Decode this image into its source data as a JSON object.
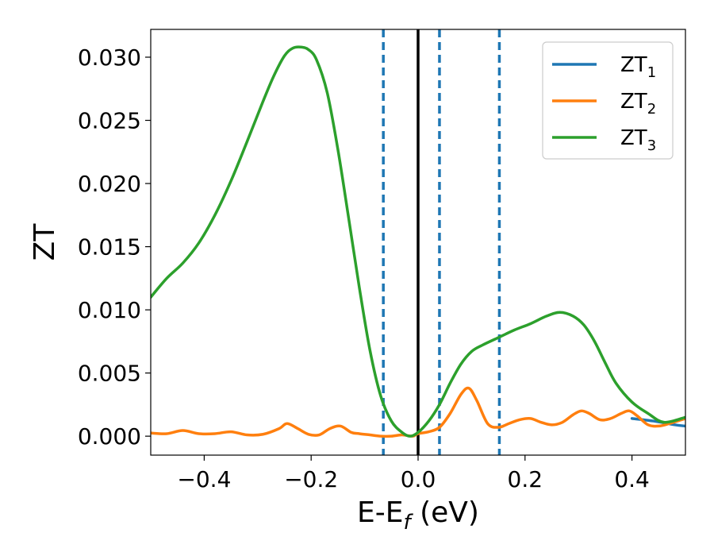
{
  "chart_data": {
    "type": "line",
    "xlabel": "E-E",
    "xlabel_sub": "f",
    "xlabel_suffix": " (eV)",
    "ylabel": "ZT",
    "xlim": [
      -0.5,
      0.5
    ],
    "ylim": [
      -0.0015,
      0.0322
    ],
    "xticks": [
      -0.4,
      -0.2,
      0.0,
      0.2,
      0.4
    ],
    "xtick_labels": [
      "−0.4",
      "−0.2",
      "0.0",
      "0.2",
      "0.4"
    ],
    "yticks": [
      0.0,
      0.005,
      0.01,
      0.015,
      0.02,
      0.025,
      0.03
    ],
    "ytick_labels": [
      "0.000",
      "0.005",
      "0.010",
      "0.015",
      "0.020",
      "0.025",
      "0.030"
    ],
    "grid": false,
    "legend_position": "top-right",
    "series": [
      {
        "name": "ZT",
        "name_sub": "1",
        "color": "#1f77b4",
        "x": [
          0.4,
          0.44,
          0.48,
          0.5
        ],
        "y": [
          0.0014,
          0.0012,
          0.0009,
          0.0008
        ]
      },
      {
        "name": "ZT",
        "name_sub": "2",
        "color": "#ff7f0e",
        "x": [
          -0.5,
          -0.47,
          -0.44,
          -0.41,
          -0.38,
          -0.35,
          -0.32,
          -0.29,
          -0.26,
          -0.245,
          -0.225,
          -0.205,
          -0.185,
          -0.165,
          -0.145,
          -0.125,
          -0.11,
          -0.09,
          -0.07,
          -0.05,
          -0.03,
          -0.01,
          0.0,
          0.02,
          0.04,
          0.06,
          0.08,
          0.095,
          0.11,
          0.13,
          0.15,
          0.17,
          0.19,
          0.21,
          0.23,
          0.25,
          0.27,
          0.29,
          0.305,
          0.32,
          0.34,
          0.36,
          0.38,
          0.395,
          0.41,
          0.43,
          0.45,
          0.47,
          0.5
        ],
        "y": [
          0.00025,
          0.0002,
          0.00045,
          0.0002,
          0.0002,
          0.00035,
          0.0001,
          0.00015,
          0.0006,
          0.001,
          0.0006,
          0.00015,
          0.0001,
          0.0006,
          0.0008,
          0.0003,
          0.0002,
          0.0001,
          0.0,
          0.0,
          0.0001,
          0.0,
          0.0002,
          0.00035,
          0.0007,
          0.0018,
          0.0033,
          0.0038,
          0.0028,
          0.001,
          0.0007,
          0.001,
          0.0013,
          0.0014,
          0.0011,
          0.0009,
          0.0011,
          0.0017,
          0.002,
          0.0018,
          0.0013,
          0.0014,
          0.0018,
          0.002,
          0.0016,
          0.0009,
          0.0008,
          0.001,
          0.0014
        ]
      },
      {
        "name": "ZT",
        "name_sub": "3",
        "color": "#2ca02c",
        "x": [
          -0.5,
          -0.47,
          -0.44,
          -0.41,
          -0.38,
          -0.35,
          -0.32,
          -0.29,
          -0.27,
          -0.25,
          -0.235,
          -0.22,
          -0.205,
          -0.19,
          -0.17,
          -0.15,
          -0.13,
          -0.11,
          -0.09,
          -0.07,
          -0.05,
          -0.03,
          -0.015,
          0.0,
          0.02,
          0.04,
          0.06,
          0.08,
          0.1,
          0.12,
          0.15,
          0.18,
          0.21,
          0.24,
          0.265,
          0.29,
          0.31,
          0.33,
          0.35,
          0.37,
          0.4,
          0.43,
          0.46,
          0.5
        ],
        "y": [
          0.011,
          0.0125,
          0.0137,
          0.0153,
          0.0175,
          0.0202,
          0.0233,
          0.0265,
          0.0285,
          0.0301,
          0.0307,
          0.0308,
          0.0306,
          0.0298,
          0.0272,
          0.0227,
          0.0173,
          0.0118,
          0.0068,
          0.0032,
          0.0012,
          0.0003,
          0.0,
          0.0003,
          0.0012,
          0.0025,
          0.0042,
          0.0057,
          0.0067,
          0.0072,
          0.0078,
          0.0084,
          0.0089,
          0.0095,
          0.0098,
          0.0095,
          0.0088,
          0.0075,
          0.0058,
          0.0042,
          0.0027,
          0.0018,
          0.0011,
          0.0015
        ]
      }
    ],
    "vlines": [
      {
        "x": -0.065,
        "style": "dashed",
        "color": "#1f77b4"
      },
      {
        "x": 0.0,
        "style": "solid",
        "color": "#000000"
      },
      {
        "x": 0.04,
        "style": "dashed",
        "color": "#1f77b4"
      },
      {
        "x": 0.152,
        "style": "dashed",
        "color": "#1f77b4"
      }
    ]
  }
}
